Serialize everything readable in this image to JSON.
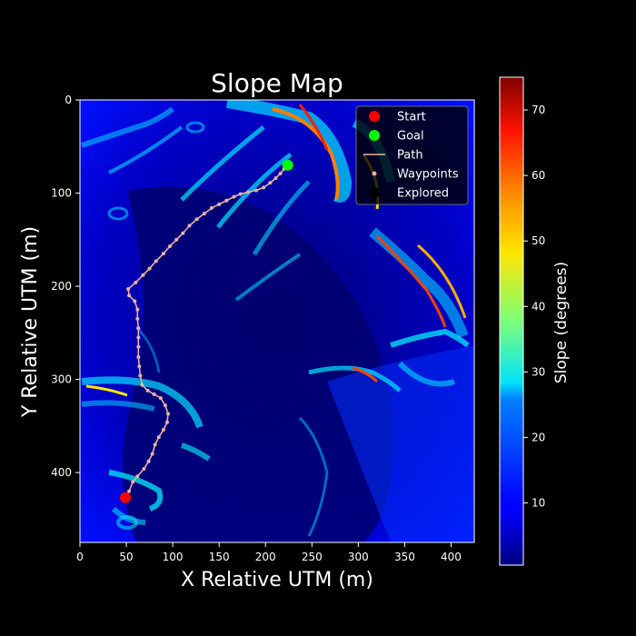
{
  "chart_data": {
    "type": "heatmap",
    "title": "Slope Map",
    "xlabel": "X Relative UTM (m)",
    "ylabel": "Y Relative UTM (m)",
    "xlim": [
      0,
      425
    ],
    "ylim": [
      475,
      0
    ],
    "y_inverted": true,
    "xticks": [
      0,
      50,
      100,
      150,
      200,
      250,
      300,
      350,
      400
    ],
    "yticks": [
      0,
      100,
      200,
      300,
      400
    ],
    "colorbar": {
      "label": "Slope (degrees)",
      "range": [
        0.5,
        75
      ],
      "ticks": [
        10,
        20,
        30,
        40,
        50,
        60,
        70
      ],
      "colormap": "jet"
    },
    "legend": {
      "placement": "top-right",
      "entries": [
        {
          "label": "Start",
          "marker": "circle",
          "color": "#ff0000"
        },
        {
          "label": "Goal",
          "marker": "circle",
          "color": "#00ff00"
        },
        {
          "label": "Path",
          "marker": "line",
          "color": "#e8b4a0"
        },
        {
          "label": "Waypoints",
          "marker": "small-circle",
          "color": "#e8b4a0"
        },
        {
          "label": "Explored",
          "marker": "circle",
          "color": "#000000"
        }
      ]
    },
    "start": {
      "x": 49,
      "y": 427
    },
    "goal": {
      "x": 224,
      "y": 70
    },
    "path": [
      {
        "x": 49,
        "y": 427
      },
      {
        "x": 53,
        "y": 420
      },
      {
        "x": 57,
        "y": 410
      },
      {
        "x": 62,
        "y": 404
      },
      {
        "x": 69,
        "y": 396
      },
      {
        "x": 74,
        "y": 388
      },
      {
        "x": 78,
        "y": 380
      },
      {
        "x": 81,
        "y": 370
      },
      {
        "x": 85,
        "y": 362
      },
      {
        "x": 90,
        "y": 354
      },
      {
        "x": 94,
        "y": 346
      },
      {
        "x": 95,
        "y": 337
      },
      {
        "x": 92,
        "y": 328
      },
      {
        "x": 87,
        "y": 320
      },
      {
        "x": 80,
        "y": 316
      },
      {
        "x": 73,
        "y": 312
      },
      {
        "x": 67,
        "y": 306
      },
      {
        "x": 65,
        "y": 296
      },
      {
        "x": 64,
        "y": 286
      },
      {
        "x": 63,
        "y": 276
      },
      {
        "x": 63,
        "y": 265
      },
      {
        "x": 63,
        "y": 255
      },
      {
        "x": 63,
        "y": 245
      },
      {
        "x": 62,
        "y": 235
      },
      {
        "x": 62,
        "y": 225
      },
      {
        "x": 59,
        "y": 216
      },
      {
        "x": 53,
        "y": 210
      },
      {
        "x": 52,
        "y": 203
      },
      {
        "x": 60,
        "y": 196
      },
      {
        "x": 68,
        "y": 188
      },
      {
        "x": 75,
        "y": 181
      },
      {
        "x": 82,
        "y": 173
      },
      {
        "x": 90,
        "y": 165
      },
      {
        "x": 97,
        "y": 157
      },
      {
        "x": 104,
        "y": 150
      },
      {
        "x": 111,
        "y": 143
      },
      {
        "x": 118,
        "y": 135
      },
      {
        "x": 126,
        "y": 128
      },
      {
        "x": 134,
        "y": 122
      },
      {
        "x": 142,
        "y": 116
      },
      {
        "x": 150,
        "y": 112
      },
      {
        "x": 158,
        "y": 108
      },
      {
        "x": 166,
        "y": 104
      },
      {
        "x": 173,
        "y": 101
      },
      {
        "x": 181,
        "y": 99
      },
      {
        "x": 190,
        "y": 97
      },
      {
        "x": 198,
        "y": 94
      },
      {
        "x": 205,
        "y": 89
      },
      {
        "x": 211,
        "y": 84
      },
      {
        "x": 216,
        "y": 79
      },
      {
        "x": 220,
        "y": 74
      },
      {
        "x": 224,
        "y": 70
      }
    ]
  }
}
